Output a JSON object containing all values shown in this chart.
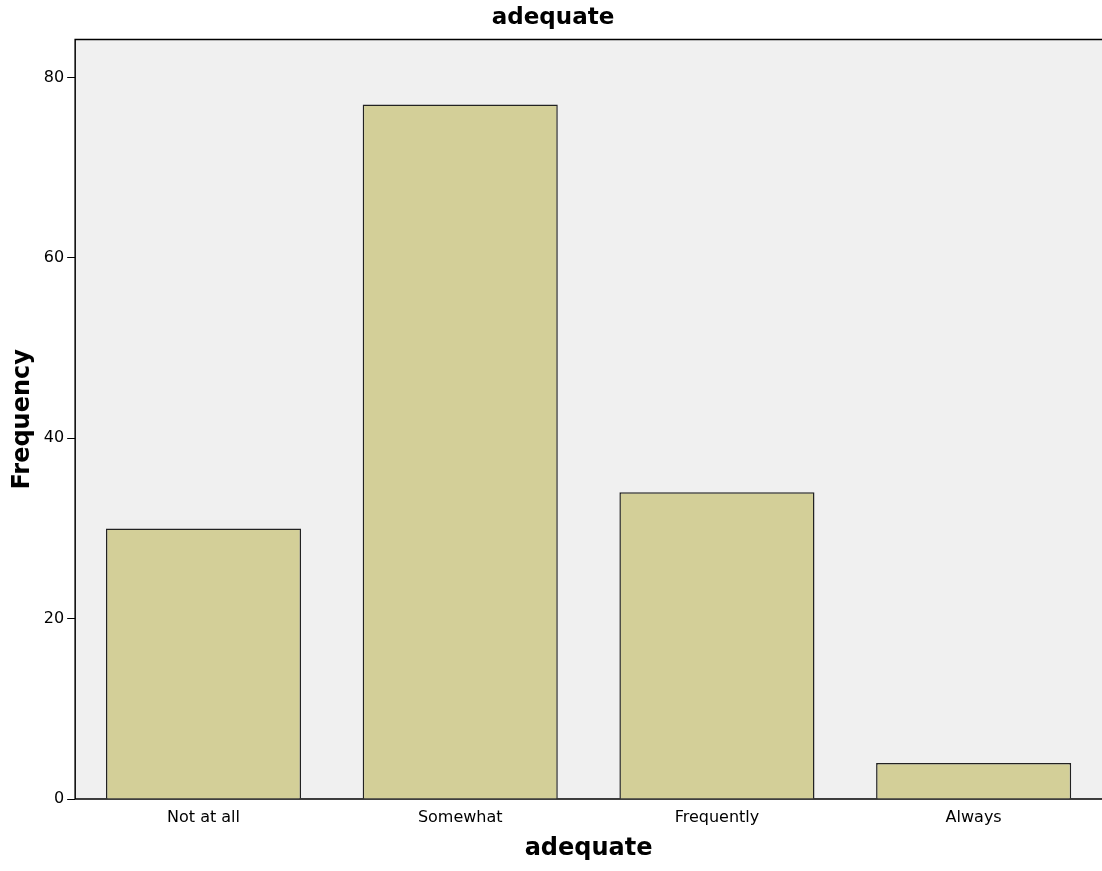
{
  "chart_data": {
    "type": "bar",
    "title": "adequate",
    "xlabel": "adequate",
    "ylabel": "Frequency",
    "categories": [
      "Not at all",
      "Somewhat",
      "Frequently",
      "Always"
    ],
    "values": [
      30,
      77,
      34,
      4
    ],
    "color": "#d3cf98",
    "ylim": [
      0,
      84.2
    ],
    "yticks": [
      0,
      20,
      40,
      60,
      80
    ],
    "grid": false,
    "legend": false
  }
}
